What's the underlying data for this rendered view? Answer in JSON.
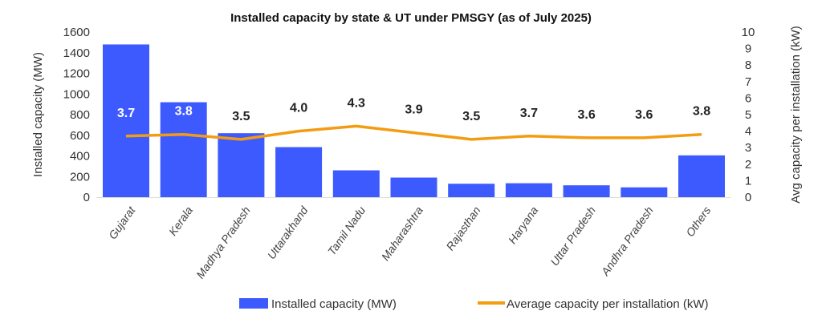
{
  "chart_data": {
    "type": "bar+line",
    "title": "Installed capacity by state & UT under PMSGY (as of July 2025)",
    "categories": [
      "Gujarat",
      "Kerala",
      "Madhya Pradesh",
      "Uttarakhand",
      "Tamil Nadu",
      "Maharashtra",
      "Rajasthan",
      "Haryana",
      "Uttar Pradesh",
      "Andhra Pradesh",
      "Others"
    ],
    "series": [
      {
        "name": "Installed capacity (MW)",
        "type": "bar",
        "axis": "left",
        "color": "#3d5afe",
        "values": [
          1480,
          920,
          620,
          485,
          260,
          190,
          130,
          135,
          115,
          95,
          405
        ]
      },
      {
        "name": "Average capacity per installation (kW)",
        "type": "line",
        "axis": "right",
        "color": "#f39c12",
        "values": [
          3.7,
          3.8,
          3.5,
          4.0,
          4.3,
          3.9,
          3.5,
          3.7,
          3.6,
          3.6,
          3.8
        ],
        "data_labels": [
          "3.7",
          "3.8",
          "3.5",
          "4.0",
          "4.3",
          "3.9",
          "3.5",
          "3.7",
          "3.6",
          "3.6",
          "3.8"
        ]
      }
    ],
    "ylabel": "Installed capacity (MW)",
    "ylabel_right": "Avg capacity per installation (kW)",
    "ylim": [
      0,
      1600
    ],
    "yticks": [
      "0",
      "200",
      "400",
      "600",
      "800",
      "1000",
      "1200",
      "1400",
      "1600"
    ],
    "ylim_right": [
      0,
      10
    ],
    "yticks_right": [
      "0",
      "1",
      "2",
      "3",
      "4",
      "5",
      "6",
      "7",
      "8",
      "9",
      "10"
    ],
    "grid": false,
    "legend": "bottom"
  }
}
